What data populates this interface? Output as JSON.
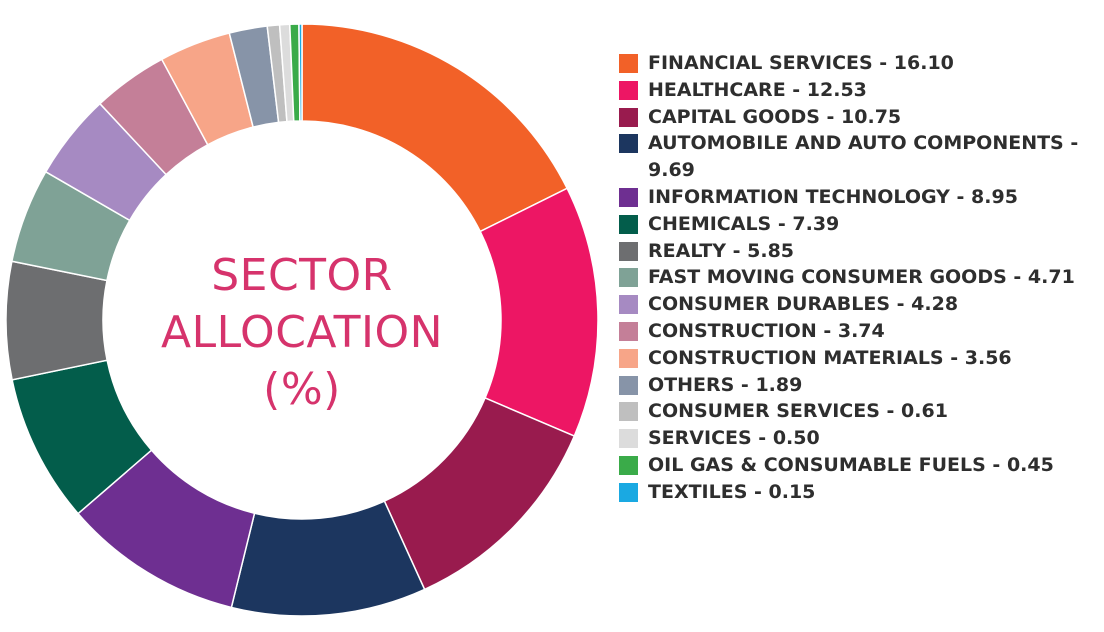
{
  "chart_data": {
    "type": "pie",
    "style": "donut",
    "title": "SECTOR ALLOCATION (%)",
    "title_lines": [
      "SECTOR",
      "ALLOCATION",
      "(%)"
    ],
    "legend_position": "right",
    "slices": [
      {
        "label": "FINANCIAL SERVICES",
        "value": 16.1,
        "value_text": "16.10",
        "color": "#f26128"
      },
      {
        "label": "HEALTHCARE",
        "value": 12.53,
        "value_text": "12.53",
        "color": "#ed1664"
      },
      {
        "label": "CAPITAL GOODS",
        "value": 10.75,
        "value_text": "10.75",
        "color": "#991b4e"
      },
      {
        "label": "AUTOMOBILE AND AUTO COMPONENTS",
        "value": 9.69,
        "value_text": "9.69",
        "color": "#1c365f"
      },
      {
        "label": "INFORMATION TECHNOLOGY",
        "value": 8.95,
        "value_text": "8.95",
        "color": "#6e2f91"
      },
      {
        "label": "CHEMICALS",
        "value": 7.39,
        "value_text": "7.39",
        "color": "#035d4b"
      },
      {
        "label": "REALTY",
        "value": 5.85,
        "value_text": "5.85",
        "color": "#6d6e70"
      },
      {
        "label": "FAST MOVING CONSUMER GOODS",
        "value": 4.71,
        "value_text": "4.71",
        "color": "#7fa296"
      },
      {
        "label": "CONSUMER DURABLES",
        "value": 4.28,
        "value_text": "4.28",
        "color": "#a68ac2"
      },
      {
        "label": "CONSTRUCTION",
        "value": 3.74,
        "value_text": "3.74",
        "color": "#c47f98"
      },
      {
        "label": "CONSTRUCTION MATERIALS",
        "value": 3.56,
        "value_text": "3.56",
        "color": "#f7a588"
      },
      {
        "label": "OTHERS",
        "value": 1.89,
        "value_text": "1.89",
        "color": "#8794a8"
      },
      {
        "label": "CONSUMER SERVICES",
        "value": 0.61,
        "value_text": "0.61",
        "color": "#bfbfbf"
      },
      {
        "label": "SERVICES",
        "value": 0.5,
        "value_text": "0.50",
        "color": "#dcdcdc"
      },
      {
        "label": "OIL GAS & CONSUMABLE FUELS",
        "value": 0.45,
        "value_text": "0.45",
        "color": "#3aab49"
      },
      {
        "label": "TEXTILES",
        "value": 0.15,
        "value_text": "0.15",
        "color": "#1aa9e2"
      }
    ]
  }
}
